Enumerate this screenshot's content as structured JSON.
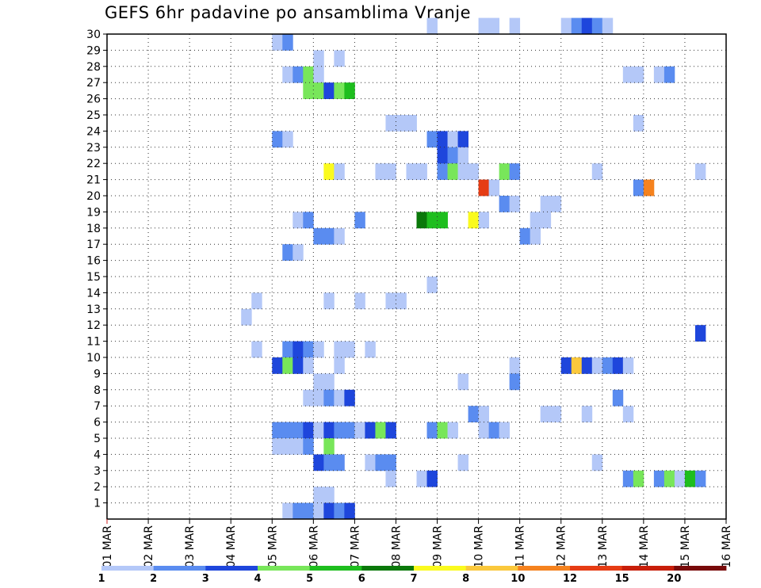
{
  "chart_data": {
    "type": "heatmap",
    "title": "GEFS 6hr padavine po ansamblima Vranje",
    "x_ticks": [
      "01 MAR",
      "02 MAR",
      "03 MAR",
      "04 MAR",
      "05 MAR",
      "06 MAR",
      "07 MAR",
      "08 MAR",
      "09 MAR",
      "10 MAR",
      "11 MAR",
      "12 MAR",
      "13 MAR",
      "14 MAR",
      "15 MAR",
      "16 MAR"
    ],
    "y_ticks": [
      "1",
      "2",
      "3",
      "4",
      "5",
      "6",
      "7",
      "8",
      "9",
      "10",
      "11",
      "12",
      "13",
      "14",
      "15",
      "16",
      "17",
      "18",
      "19",
      "20",
      "21",
      "22",
      "23",
      "24",
      "25",
      "26",
      "27",
      "28",
      "29",
      "30"
    ],
    "xlim": [
      "01 MAR",
      "16 MAR"
    ],
    "ylim": [
      0,
      30
    ],
    "x_step_hours": 6,
    "grid": true,
    "legend": {
      "placement": "bottom",
      "labels": [
        "1",
        "2",
        "3",
        "4",
        "5",
        "6",
        "7",
        "8",
        "10",
        "12",
        "15",
        "20"
      ],
      "colors": [
        "#b4c8f8",
        "#5a8cf0",
        "#1e46dc",
        "#78e65a",
        "#1ebe1e",
        "#0a780a",
        "#fafa1e",
        "#fac83c",
        "#f5821e",
        "#e63c14",
        "#c81e0a",
        "#780a0a"
      ]
    },
    "cells": [
      {
        "member": 30,
        "t": "08 MAR 18",
        "bin": 1
      },
      {
        "member": 30,
        "t": "10 MAR 00",
        "bin": 1
      },
      {
        "member": 30,
        "t": "10 MAR 06",
        "bin": 1
      },
      {
        "member": 30,
        "t": "10 MAR 18",
        "bin": 1
      },
      {
        "member": 30,
        "t": "12 MAR 00",
        "bin": 1
      },
      {
        "member": 30,
        "t": "12 MAR 06",
        "bin": 2
      },
      {
        "member": 30,
        "t": "12 MAR 12",
        "bin": 3
      },
      {
        "member": 30,
        "t": "12 MAR 18",
        "bin": 2
      },
      {
        "member": 30,
        "t": "13 MAR 00",
        "bin": 1
      },
      {
        "member": 29,
        "t": "05 MAR 00",
        "bin": 1
      },
      {
        "member": 29,
        "t": "05 MAR 06",
        "bin": 2
      },
      {
        "member": 28,
        "t": "06 MAR 00",
        "bin": 1
      },
      {
        "member": 28,
        "t": "06 MAR 12",
        "bin": 1
      },
      {
        "member": 27,
        "t": "05 MAR 06",
        "bin": 1
      },
      {
        "member": 27,
        "t": "05 MAR 12",
        "bin": 2
      },
      {
        "member": 27,
        "t": "05 MAR 18",
        "bin": 4
      },
      {
        "member": 27,
        "t": "06 MAR 00",
        "bin": 1
      },
      {
        "member": 27,
        "t": "13 MAR 12",
        "bin": 1
      },
      {
        "member": 27,
        "t": "13 MAR 18",
        "bin": 1
      },
      {
        "member": 27,
        "t": "14 MAR 06",
        "bin": 1
      },
      {
        "member": 27,
        "t": "14 MAR 12",
        "bin": 2
      },
      {
        "member": 26,
        "t": "05 MAR 18",
        "bin": 4
      },
      {
        "member": 26,
        "t": "06 MAR 00",
        "bin": 4
      },
      {
        "member": 26,
        "t": "06 MAR 06",
        "bin": 3
      },
      {
        "member": 26,
        "t": "06 MAR 12",
        "bin": 4
      },
      {
        "member": 26,
        "t": "06 MAR 18",
        "bin": 5
      },
      {
        "member": 24,
        "t": "07 MAR 18",
        "bin": 1
      },
      {
        "member": 24,
        "t": "08 MAR 00",
        "bin": 1
      },
      {
        "member": 24,
        "t": "08 MAR 06",
        "bin": 1
      },
      {
        "member": 24,
        "t": "13 MAR 18",
        "bin": 1
      },
      {
        "member": 23,
        "t": "05 MAR 00",
        "bin": 2
      },
      {
        "member": 23,
        "t": "05 MAR 06",
        "bin": 1
      },
      {
        "member": 23,
        "t": "08 MAR 18",
        "bin": 2
      },
      {
        "member": 23,
        "t": "09 MAR 00",
        "bin": 3
      },
      {
        "member": 23,
        "t": "09 MAR 06",
        "bin": 1
      },
      {
        "member": 23,
        "t": "09 MAR 12",
        "bin": 3
      },
      {
        "member": 22,
        "t": "09 MAR 00",
        "bin": 3
      },
      {
        "member": 22,
        "t": "09 MAR 06",
        "bin": 2
      },
      {
        "member": 22,
        "t": "09 MAR 12",
        "bin": 1
      },
      {
        "member": 21,
        "t": "06 MAR 06",
        "bin": 7
      },
      {
        "member": 21,
        "t": "06 MAR 12",
        "bin": 1
      },
      {
        "member": 21,
        "t": "07 MAR 12",
        "bin": 1
      },
      {
        "member": 21,
        "t": "07 MAR 18",
        "bin": 1
      },
      {
        "member": 21,
        "t": "08 MAR 06",
        "bin": 1
      },
      {
        "member": 21,
        "t": "08 MAR 12",
        "bin": 1
      },
      {
        "member": 21,
        "t": "09 MAR 00",
        "bin": 2
      },
      {
        "member": 21,
        "t": "09 MAR 06",
        "bin": 4
      },
      {
        "member": 21,
        "t": "09 MAR 12",
        "bin": 1
      },
      {
        "member": 21,
        "t": "09 MAR 18",
        "bin": 1
      },
      {
        "member": 21,
        "t": "10 MAR 12",
        "bin": 4
      },
      {
        "member": 21,
        "t": "10 MAR 18",
        "bin": 2
      },
      {
        "member": 21,
        "t": "12 MAR 18",
        "bin": 1
      },
      {
        "member": 21,
        "t": "15 MAR 06",
        "bin": 1
      },
      {
        "member": 20,
        "t": "10 MAR 00",
        "bin": 10
      },
      {
        "member": 20,
        "t": "10 MAR 06",
        "bin": 1
      },
      {
        "member": 20,
        "t": "13 MAR 18",
        "bin": 2
      },
      {
        "member": 20,
        "t": "14 MAR 00",
        "bin": 9
      },
      {
        "member": 19,
        "t": "10 MAR 12",
        "bin": 2
      },
      {
        "member": 19,
        "t": "10 MAR 18",
        "bin": 1
      },
      {
        "member": 19,
        "t": "11 MAR 12",
        "bin": 1
      },
      {
        "member": 19,
        "t": "11 MAR 18",
        "bin": 1
      },
      {
        "member": 18,
        "t": "05 MAR 12",
        "bin": 1
      },
      {
        "member": 18,
        "t": "05 MAR 18",
        "bin": 2
      },
      {
        "member": 18,
        "t": "07 MAR 00",
        "bin": 2
      },
      {
        "member": 18,
        "t": "08 MAR 12",
        "bin": 6
      },
      {
        "member": 18,
        "t": "08 MAR 18",
        "bin": 5
      },
      {
        "member": 18,
        "t": "09 MAR 00",
        "bin": 5
      },
      {
        "member": 18,
        "t": "09 MAR 18",
        "bin": 7
      },
      {
        "member": 18,
        "t": "10 MAR 00",
        "bin": 1
      },
      {
        "member": 18,
        "t": "11 MAR 06",
        "bin": 1
      },
      {
        "member": 18,
        "t": "11 MAR 12",
        "bin": 1
      },
      {
        "member": 17,
        "t": "06 MAR 00",
        "bin": 2
      },
      {
        "member": 17,
        "t": "06 MAR 06",
        "bin": 2
      },
      {
        "member": 17,
        "t": "06 MAR 12",
        "bin": 1
      },
      {
        "member": 17,
        "t": "11 MAR 00",
        "bin": 2
      },
      {
        "member": 17,
        "t": "11 MAR 06",
        "bin": 1
      },
      {
        "member": 16,
        "t": "05 MAR 06",
        "bin": 2
      },
      {
        "member": 16,
        "t": "05 MAR 12",
        "bin": 1
      },
      {
        "member": 14,
        "t": "08 MAR 18",
        "bin": 1
      },
      {
        "member": 13,
        "t": "04 MAR 12",
        "bin": 1
      },
      {
        "member": 13,
        "t": "06 MAR 06",
        "bin": 1
      },
      {
        "member": 13,
        "t": "07 MAR 00",
        "bin": 1
      },
      {
        "member": 13,
        "t": "07 MAR 18",
        "bin": 1
      },
      {
        "member": 13,
        "t": "08 MAR 00",
        "bin": 1
      },
      {
        "member": 12,
        "t": "04 MAR 06",
        "bin": 1
      },
      {
        "member": 11,
        "t": "15 MAR 06",
        "bin": 3
      },
      {
        "member": 10,
        "t": "04 MAR 12",
        "bin": 1
      },
      {
        "member": 10,
        "t": "05 MAR 06",
        "bin": 2
      },
      {
        "member": 10,
        "t": "05 MAR 12",
        "bin": 3
      },
      {
        "member": 10,
        "t": "05 MAR 18",
        "bin": 2
      },
      {
        "member": 10,
        "t": "06 MAR 00",
        "bin": 1
      },
      {
        "member": 10,
        "t": "06 MAR 12",
        "bin": 1
      },
      {
        "member": 10,
        "t": "06 MAR 18",
        "bin": 1
      },
      {
        "member": 10,
        "t": "07 MAR 06",
        "bin": 1
      },
      {
        "member": 9,
        "t": "05 MAR 00",
        "bin": 3
      },
      {
        "member": 9,
        "t": "05 MAR 06",
        "bin": 4
      },
      {
        "member": 9,
        "t": "05 MAR 12",
        "bin": 3
      },
      {
        "member": 9,
        "t": "05 MAR 18",
        "bin": 1
      },
      {
        "member": 9,
        "t": "06 MAR 12",
        "bin": 1
      },
      {
        "member": 9,
        "t": "10 MAR 18",
        "bin": 1
      },
      {
        "member": 9,
        "t": "12 MAR 00",
        "bin": 3
      },
      {
        "member": 9,
        "t": "12 MAR 06",
        "bin": 8
      },
      {
        "member": 9,
        "t": "12 MAR 12",
        "bin": 3
      },
      {
        "member": 9,
        "t": "12 MAR 18",
        "bin": 1
      },
      {
        "member": 9,
        "t": "13 MAR 00",
        "bin": 2
      },
      {
        "member": 9,
        "t": "13 MAR 06",
        "bin": 3
      },
      {
        "member": 9,
        "t": "13 MAR 12",
        "bin": 1
      },
      {
        "member": 8,
        "t": "06 MAR 00",
        "bin": 1
      },
      {
        "member": 8,
        "t": "06 MAR 06",
        "bin": 1
      },
      {
        "member": 8,
        "t": "09 MAR 12",
        "bin": 1
      },
      {
        "member": 8,
        "t": "10 MAR 18",
        "bin": 2
      },
      {
        "member": 7,
        "t": "05 MAR 18",
        "bin": 1
      },
      {
        "member": 7,
        "t": "06 MAR 00",
        "bin": 1
      },
      {
        "member": 7,
        "t": "06 MAR 06",
        "bin": 2
      },
      {
        "member": 7,
        "t": "06 MAR 12",
        "bin": 1
      },
      {
        "member": 7,
        "t": "06 MAR 18",
        "bin": 3
      },
      {
        "member": 7,
        "t": "13 MAR 06",
        "bin": 2
      },
      {
        "member": 6,
        "t": "09 MAR 18",
        "bin": 2
      },
      {
        "member": 6,
        "t": "10 MAR 00",
        "bin": 1
      },
      {
        "member": 6,
        "t": "11 MAR 12",
        "bin": 1
      },
      {
        "member": 6,
        "t": "11 MAR 18",
        "bin": 1
      },
      {
        "member": 6,
        "t": "12 MAR 12",
        "bin": 1
      },
      {
        "member": 6,
        "t": "13 MAR 12",
        "bin": 1
      },
      {
        "member": 5,
        "t": "05 MAR 00",
        "bin": 2
      },
      {
        "member": 5,
        "t": "05 MAR 06",
        "bin": 2
      },
      {
        "member": 5,
        "t": "05 MAR 12",
        "bin": 2
      },
      {
        "member": 5,
        "t": "05 MAR 18",
        "bin": 3
      },
      {
        "member": 5,
        "t": "06 MAR 00",
        "bin": 1
      },
      {
        "member": 5,
        "t": "06 MAR 06",
        "bin": 3
      },
      {
        "member": 5,
        "t": "06 MAR 12",
        "bin": 2
      },
      {
        "member": 5,
        "t": "06 MAR 18",
        "bin": 2
      },
      {
        "member": 5,
        "t": "07 MAR 00",
        "bin": 1
      },
      {
        "member": 5,
        "t": "07 MAR 06",
        "bin": 3
      },
      {
        "member": 5,
        "t": "07 MAR 12",
        "bin": 4
      },
      {
        "member": 5,
        "t": "07 MAR 18",
        "bin": 3
      },
      {
        "member": 5,
        "t": "08 MAR 18",
        "bin": 2
      },
      {
        "member": 5,
        "t": "09 MAR 00",
        "bin": 4
      },
      {
        "member": 5,
        "t": "09 MAR 06",
        "bin": 1
      },
      {
        "member": 5,
        "t": "10 MAR 00",
        "bin": 1
      },
      {
        "member": 5,
        "t": "10 MAR 06",
        "bin": 2
      },
      {
        "member": 5,
        "t": "10 MAR 12",
        "bin": 1
      },
      {
        "member": 4,
        "t": "05 MAR 00",
        "bin": 1
      },
      {
        "member": 4,
        "t": "05 MAR 06",
        "bin": 1
      },
      {
        "member": 4,
        "t": "05 MAR 12",
        "bin": 1
      },
      {
        "member": 4,
        "t": "05 MAR 18",
        "bin": 2
      },
      {
        "member": 4,
        "t": "06 MAR 06",
        "bin": 4
      },
      {
        "member": 3,
        "t": "06 MAR 00",
        "bin": 3
      },
      {
        "member": 3,
        "t": "06 MAR 06",
        "bin": 2
      },
      {
        "member": 3,
        "t": "06 MAR 12",
        "bin": 2
      },
      {
        "member": 3,
        "t": "07 MAR 06",
        "bin": 1
      },
      {
        "member": 3,
        "t": "07 MAR 12",
        "bin": 2
      },
      {
        "member": 3,
        "t": "07 MAR 18",
        "bin": 2
      },
      {
        "member": 3,
        "t": "09 MAR 12",
        "bin": 1
      },
      {
        "member": 3,
        "t": "12 MAR 18",
        "bin": 1
      },
      {
        "member": 2,
        "t": "07 MAR 18",
        "bin": 1
      },
      {
        "member": 2,
        "t": "08 MAR 12",
        "bin": 1
      },
      {
        "member": 2,
        "t": "08 MAR 18",
        "bin": 3
      },
      {
        "member": 2,
        "t": "13 MAR 12",
        "bin": 2
      },
      {
        "member": 2,
        "t": "13 MAR 18",
        "bin": 4
      },
      {
        "member": 2,
        "t": "14 MAR 06",
        "bin": 2
      },
      {
        "member": 2,
        "t": "14 MAR 12",
        "bin": 4
      },
      {
        "member": 2,
        "t": "14 MAR 18",
        "bin": 1
      },
      {
        "member": 2,
        "t": "15 MAR 00",
        "bin": 5
      },
      {
        "member": 2,
        "t": "15 MAR 06",
        "bin": 2
      },
      {
        "member": 1,
        "t": "06 MAR 00",
        "bin": 1
      },
      {
        "member": 1,
        "t": "06 MAR 06",
        "bin": 1
      },
      {
        "member": 0,
        "t": "05 MAR 06",
        "bin": 1
      },
      {
        "member": 0,
        "t": "05 MAR 12",
        "bin": 2
      },
      {
        "member": 0,
        "t": "05 MAR 18",
        "bin": 2
      },
      {
        "member": 0,
        "t": "06 MAR 00",
        "bin": 1
      },
      {
        "member": 0,
        "t": "06 MAR 06",
        "bin": 3
      },
      {
        "member": 0,
        "t": "06 MAR 12",
        "bin": 2
      },
      {
        "member": 0,
        "t": "06 MAR 18",
        "bin": 3
      }
    ]
  }
}
